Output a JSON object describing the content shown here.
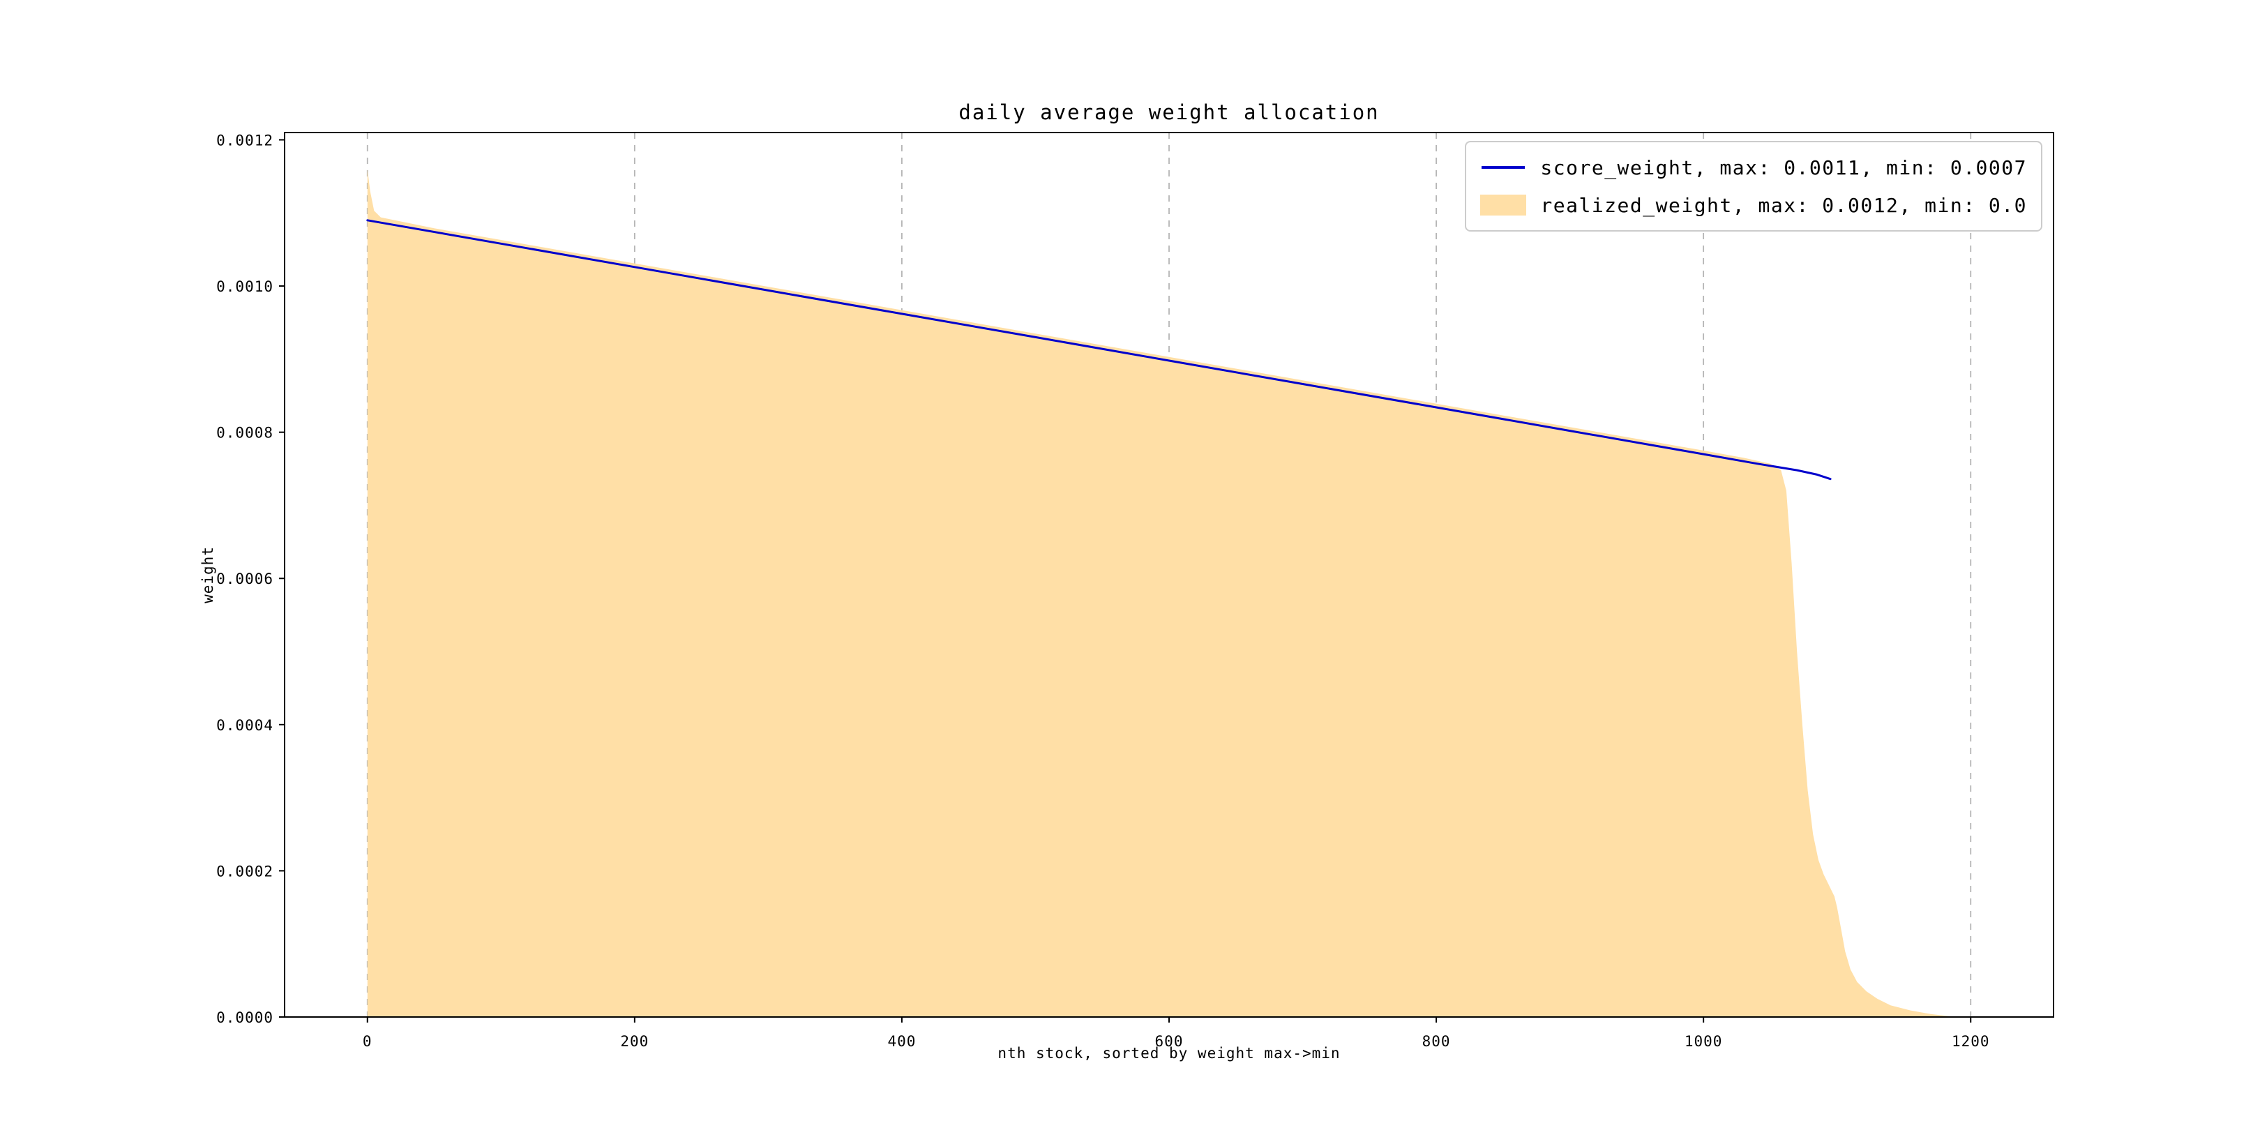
{
  "chart_data": {
    "type": "area",
    "title": "daily average weight allocation",
    "xlabel": "nth stock, sorted by weight max->min",
    "ylabel": "weight",
    "xlim": [
      -62,
      1262
    ],
    "ylim": [
      0,
      0.00121
    ],
    "xticks": [
      0,
      200,
      400,
      600,
      800,
      1000,
      1200
    ],
    "yticks": [
      0.0,
      0.0002,
      0.0004,
      0.0006,
      0.0008,
      0.001,
      0.0012
    ],
    "ytick_labels": [
      "0.0000",
      "0.0002",
      "0.0004",
      "0.0006",
      "0.0008",
      "0.0010",
      "0.0012"
    ],
    "grid": "vertical-dashed",
    "gridline_color": "#b5b5b5",
    "legend_position": "upper-right",
    "series": [
      {
        "name": "score_weight",
        "type": "line",
        "color": "#0000cc",
        "legend_label": "score_weight, max: 0.0011, min: 0.0007",
        "max": 0.0011,
        "min": 0.0007,
        "points": [
          [
            0,
            0.00109
          ],
          [
            100,
            0.001058
          ],
          [
            200,
            0.001026
          ],
          [
            300,
            0.000994
          ],
          [
            400,
            0.000962
          ],
          [
            500,
            0.00093
          ],
          [
            600,
            0.000898
          ],
          [
            700,
            0.000866
          ],
          [
            800,
            0.000834
          ],
          [
            900,
            0.000802
          ],
          [
            1000,
            0.00077
          ],
          [
            1040,
            0.000757
          ],
          [
            1070,
            0.000748
          ],
          [
            1085,
            0.000742
          ],
          [
            1095,
            0.000736
          ]
        ]
      },
      {
        "name": "realized_weight",
        "type": "area",
        "color": "#FFDFA6",
        "legend_label": "realized_weight, max: 0.0012, min: 0.0",
        "max": 0.0012,
        "min": 0.0,
        "points": [
          [
            0,
            0.00116
          ],
          [
            2,
            0.00113
          ],
          [
            5,
            0.001103
          ],
          [
            10,
            0.001094
          ],
          [
            50,
            0.001079
          ],
          [
            100,
            0.001063
          ],
          [
            200,
            0.001031
          ],
          [
            300,
            0.000999
          ],
          [
            400,
            0.000967
          ],
          [
            500,
            0.000935
          ],
          [
            600,
            0.000903
          ],
          [
            700,
            0.000871
          ],
          [
            800,
            0.000839
          ],
          [
            900,
            0.000807
          ],
          [
            1000,
            0.000775
          ],
          [
            1030,
            0.000765
          ],
          [
            1050,
            0.000757
          ],
          [
            1058,
            0.000748
          ],
          [
            1062,
            0.00072
          ],
          [
            1066,
            0.00062
          ],
          [
            1070,
            0.0005
          ],
          [
            1074,
            0.0004
          ],
          [
            1078,
            0.00031
          ],
          [
            1082,
            0.00025
          ],
          [
            1086,
            0.000215
          ],
          [
            1090,
            0.000195
          ],
          [
            1094,
            0.00018
          ],
          [
            1098,
            0.000165
          ],
          [
            1100,
            0.00015
          ],
          [
            1103,
            0.00012
          ],
          [
            1106,
            9e-05
          ],
          [
            1110,
            6.5e-05
          ],
          [
            1115,
            4.8e-05
          ],
          [
            1122,
            3.5e-05
          ],
          [
            1130,
            2.5e-05
          ],
          [
            1140,
            1.6e-05
          ],
          [
            1155,
            9e-06
          ],
          [
            1170,
            4e-06
          ],
          [
            1185,
            1e-06
          ],
          [
            1200,
            0.0
          ]
        ]
      }
    ]
  }
}
